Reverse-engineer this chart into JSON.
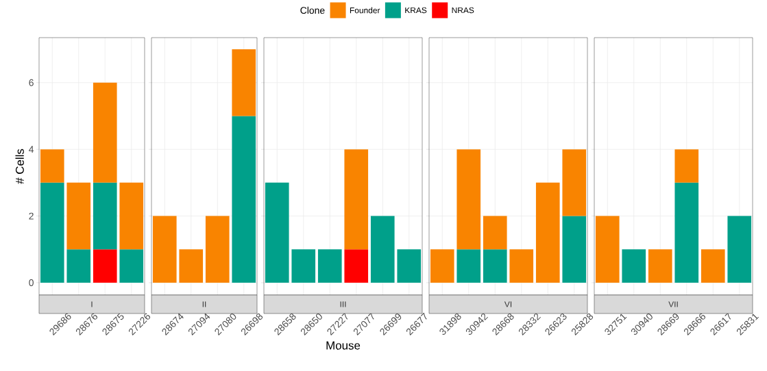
{
  "chart_data": [
    {
      "type": "bar",
      "title": "I",
      "ylabel": "# Cells",
      "legend_title": "Clone",
      "legend": "top",
      "stacked": true,
      "grid": true,
      "ylim": [
        -0.37,
        7.35
      ],
      "yticks": [
        0,
        2,
        4,
        6
      ],
      "categories": [
        "29686",
        "28676",
        "28675",
        "27226"
      ],
      "series": [
        {
          "name": "NRAS",
          "color": "#ff0000",
          "values": [
            null,
            null,
            1,
            null
          ]
        },
        {
          "name": "KRAS",
          "color": "#00a08a",
          "values": [
            3,
            1,
            2,
            1
          ]
        },
        {
          "name": "Founder",
          "color": "#f98400",
          "values": [
            1,
            2,
            3,
            2
          ]
        }
      ]
    },
    {
      "type": "bar",
      "title": "II",
      "stacked": true,
      "grid": true,
      "tick_labels": "x",
      "ylim": [
        -0.37,
        7.35
      ],
      "yticks": [
        0,
        2,
        4,
        6
      ],
      "categories": [
        "28674",
        "27094",
        "27080",
        "26698"
      ],
      "series": [
        {
          "color": "#00a08a",
          "values": [
            null,
            null,
            null,
            5
          ]
        },
        {
          "color": "#f98400",
          "values": [
            2,
            1,
            2,
            2
          ]
        }
      ]
    },
    {
      "type": "bar",
      "title": "III",
      "xlabel": "Mouse",
      "stacked": true,
      "grid": true,
      "tick_labels": "x",
      "ylim": [
        -0.37,
        7.35
      ],
      "yticks": [
        0,
        2,
        4,
        6
      ],
      "categories": [
        "28658",
        "28650",
        "27227",
        "27077",
        "26699",
        "26677"
      ],
      "series": [
        {
          "color": "#ff0000",
          "values": [
            null,
            null,
            null,
            1,
            null,
            null
          ]
        },
        {
          "color": "#00a08a",
          "values": [
            3,
            1,
            1,
            null,
            2,
            1
          ]
        },
        {
          "color": "#f98400",
          "values": [
            null,
            null,
            null,
            3,
            null,
            null
          ]
        }
      ]
    },
    {
      "type": "bar",
      "title": "VI",
      "stacked": true,
      "grid": true,
      "tick_labels": "x",
      "ylim": [
        -0.37,
        7.35
      ],
      "yticks": [
        0,
        2,
        4,
        6
      ],
      "categories": [
        "31898",
        "30942",
        "28668",
        "28332",
        "26623",
        "25828"
      ],
      "series": [
        {
          "color": "#00a08a",
          "values": [
            null,
            1,
            1,
            null,
            null,
            2
          ]
        },
        {
          "color": "#f98400",
          "values": [
            1,
            3,
            1,
            1,
            3,
            2
          ]
        }
      ]
    },
    {
      "type": "bar",
      "title": "VII",
      "stacked": true,
      "grid": true,
      "tick_labels": "x",
      "ylim": [
        -0.37,
        7.35
      ],
      "yticks": [
        0,
        2,
        4,
        6
      ],
      "categories": [
        "32751",
        "30940",
        "28669",
        "28666",
        "26617",
        "25831"
      ],
      "series": [
        {
          "color": "#00a08a",
          "values": [
            null,
            1,
            null,
            3,
            null,
            2
          ]
        },
        {
          "color": "#f98400",
          "values": [
            2,
            null,
            1,
            1,
            1,
            null
          ]
        }
      ]
    }
  ]
}
